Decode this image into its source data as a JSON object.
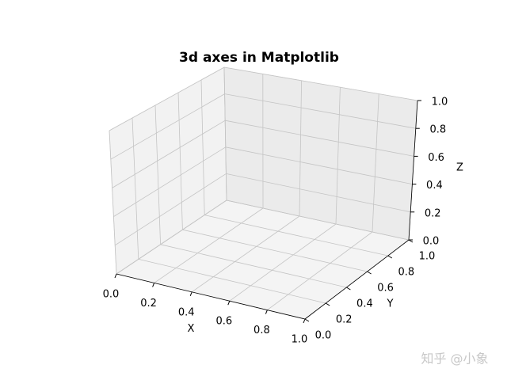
{
  "chart_data": {
    "type": "3d",
    "title": "3d axes in Matplotlib",
    "xlabel": "X",
    "ylabel": "Y",
    "zlabel": "Z",
    "xlim": [
      0,
      1
    ],
    "ylim": [
      0,
      1
    ],
    "zlim": [
      0,
      1
    ],
    "xticks": [
      {
        "value": 0,
        "label": "0.0"
      },
      {
        "value": 0.2,
        "label": "0.2"
      },
      {
        "value": 0.4,
        "label": "0.4"
      },
      {
        "value": 0.6,
        "label": "0.6"
      },
      {
        "value": 0.8,
        "label": "0.8"
      },
      {
        "value": 1,
        "label": "1.0"
      }
    ],
    "yticks": [
      {
        "value": 0,
        "label": "0.0"
      },
      {
        "value": 0.2,
        "label": "0.2"
      },
      {
        "value": 0.4,
        "label": "0.4"
      },
      {
        "value": 0.6,
        "label": "0.6"
      },
      {
        "value": 0.8,
        "label": "0.8"
      },
      {
        "value": 1,
        "label": "1.0"
      }
    ],
    "zticks": [
      {
        "value": 0,
        "label": "0.0"
      },
      {
        "value": 0.2,
        "label": "0.2"
      },
      {
        "value": 0.4,
        "label": "0.4"
      },
      {
        "value": 0.6,
        "label": "0.6"
      },
      {
        "value": 0.8,
        "label": "0.8"
      },
      {
        "value": 1,
        "label": "1.0"
      }
    ],
    "grid": true
  },
  "watermark": "知乎 @小象"
}
